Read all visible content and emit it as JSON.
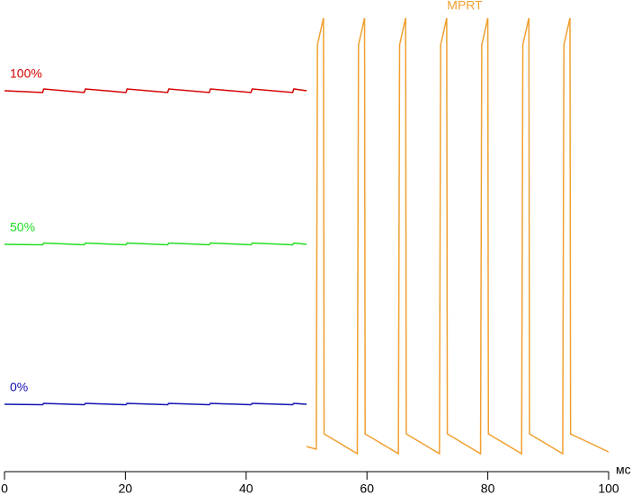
{
  "chart_data": {
    "type": "line",
    "xlabel": "мс",
    "xlim": [
      0,
      100
    ],
    "xticks": [
      0,
      20,
      40,
      60,
      80,
      100
    ],
    "ylim": [
      0,
      102
    ],
    "grid": false,
    "series": [
      {
        "name": "100%",
        "color": "#d40000",
        "x": [
          0,
          6.3,
          6.5,
          13.2,
          13.4,
          20.1,
          20.3,
          27,
          27.2,
          33.9,
          34.1,
          40.8,
          41,
          47.7,
          47.9,
          50
        ],
        "values": [
          84.8,
          84.4,
          85.2,
          84.4,
          85.2,
          84.4,
          85.2,
          84.4,
          85.2,
          84.4,
          85.2,
          84.4,
          85.2,
          84.4,
          85.2,
          84.8
        ]
      },
      {
        "name": "50%",
        "color": "#22dd22",
        "x": [
          0,
          6.3,
          6.5,
          13.2,
          13.4,
          20.1,
          20.3,
          27,
          27.2,
          33.9,
          34.1,
          40.8,
          41,
          47.7,
          47.9,
          50
        ],
        "values": [
          50.6,
          50.5,
          50.9,
          50.5,
          50.9,
          50.5,
          50.9,
          50.5,
          50.9,
          50.5,
          50.9,
          50.5,
          50.9,
          50.5,
          50.9,
          50.6
        ]
      },
      {
        "name": "0%",
        "color": "#1010b0",
        "x": [
          0,
          6.3,
          6.5,
          13.2,
          13.4,
          20.1,
          20.3,
          27,
          27.2,
          33.9,
          34.1,
          40.8,
          41,
          47.7,
          47.9,
          50
        ],
        "values": [
          15,
          14.9,
          15.2,
          14.9,
          15.2,
          14.9,
          15.2,
          14.9,
          15.2,
          14.9,
          15.2,
          14.9,
          15.2,
          14.9,
          15.2,
          15
        ]
      },
      {
        "name": "MPRT",
        "color": "#f0a030",
        "x": [
          50,
          51.6,
          51.8,
          52.8,
          52.9,
          58.4,
          58.6,
          59.6,
          59.7,
          65.2,
          65.4,
          66.4,
          66.5,
          72,
          72.2,
          73.2,
          73.3,
          78.8,
          79,
          80,
          80.1,
          85.6,
          85.8,
          86.8,
          86.9,
          92.4,
          92.6,
          93.6,
          93.7,
          100
        ],
        "values": [
          5.6,
          5,
          95,
          101,
          8.4,
          4,
          95,
          101,
          8.4,
          4,
          95,
          101,
          8.4,
          4,
          95,
          101,
          8.4,
          4,
          95,
          101,
          8.4,
          4,
          95,
          101,
          8.4,
          4,
          95,
          101,
          8.4,
          4.4
        ]
      }
    ]
  }
}
